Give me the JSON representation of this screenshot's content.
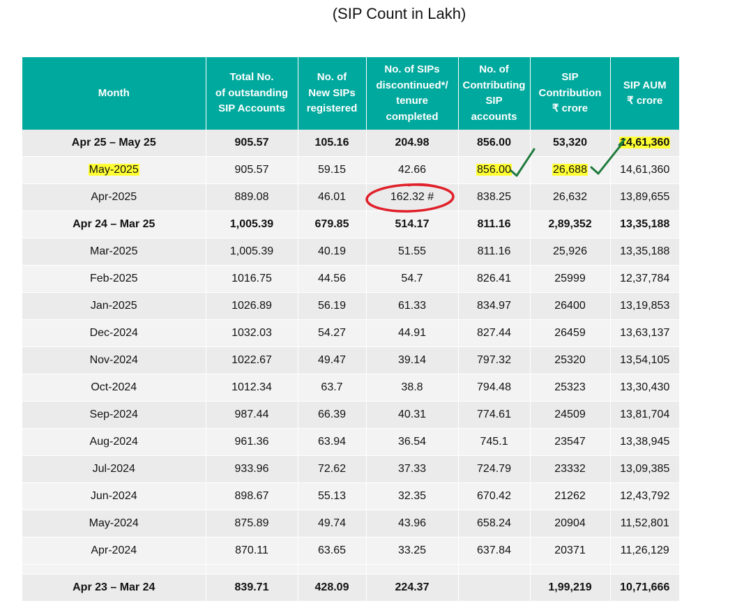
{
  "title": "(SIP Count in Lakh)",
  "table": {
    "headers": [
      "Month",
      "Total No.\nof outstanding\nSIP Accounts",
      "No. of\nNew SIPs\nregistered",
      "No. of SIPs\ndiscontinued*/\ntenure\ncompleted",
      "No. of\nContributing\nSIP\naccounts",
      "SIP\nContribution\n₹ crore",
      "SIP AUM\n₹ crore"
    ],
    "rows": [
      [
        "Apr 25 – May 25",
        "905.57",
        "105.16",
        "204.98",
        "856.00",
        "53,320",
        "14,61,360"
      ],
      [
        "May-2025",
        "905.57",
        "59.15",
        "42.66",
        "856.00",
        "26,688",
        "14,61,360"
      ],
      [
        "Apr-2025",
        "889.08",
        "46.01",
        "162.32 #",
        "838.25",
        "26,632",
        "13,89,655"
      ],
      [
        "Apr 24 – Mar 25",
        "1,005.39",
        "679.85",
        "514.17",
        "811.16",
        "2,89,352",
        "13,35,188"
      ],
      [
        "Mar-2025",
        "1,005.39",
        "40.19",
        "51.55",
        "811.16",
        "25,926",
        "13,35,188"
      ],
      [
        "Feb-2025",
        "1016.75",
        "44.56",
        "54.7",
        "826.41",
        "25999",
        "12,37,784"
      ],
      [
        "Jan-2025",
        "1026.89",
        "56.19",
        "61.33",
        "834.97",
        "26400",
        "13,19,853"
      ],
      [
        "Dec-2024",
        "1032.03",
        "54.27",
        "44.91",
        "827.44",
        "26459",
        "13,63,137"
      ],
      [
        "Nov-2024",
        "1022.67",
        "49.47",
        "39.14",
        "797.32",
        "25320",
        "13,54,105"
      ],
      [
        "Oct-2024",
        "1012.34",
        "63.7",
        "38.8",
        "794.48",
        "25323",
        "13,30,430"
      ],
      [
        "Sep-2024",
        "987.44",
        "66.39",
        "40.31",
        "774.61",
        "24509",
        "13,81,704"
      ],
      [
        "Aug-2024",
        "961.36",
        "63.94",
        "36.54",
        "745.1",
        "23547",
        "13,38,945"
      ],
      [
        "Jul-2024",
        "933.96",
        "72.62",
        "37.33",
        "724.79",
        "23332",
        "13,09,385"
      ],
      [
        "Jun-2024",
        "898.67",
        "55.13",
        "32.35",
        "670.42",
        "21262",
        "12,43,792"
      ],
      [
        "May-2024",
        "875.89",
        "49.74",
        "43.96",
        "658.24",
        "20904",
        "11,52,801"
      ],
      [
        "Apr-2024",
        "870.11",
        "63.65",
        "33.25",
        "637.84",
        "20371",
        "11,26,129"
      ]
    ],
    "total_row": [
      "Apr 23 – Mar 24",
      "839.71",
      "428.09",
      "224.37",
      "",
      "1,99,219",
      "10,71,666"
    ]
  },
  "annotations": {
    "highlight_color": "#ffff33",
    "circle_color": "#e0202a",
    "check_color": "#1e7a3c",
    "icons": [
      "checkmark-icon",
      "checkmark-icon",
      "checkmark-icon"
    ]
  }
}
